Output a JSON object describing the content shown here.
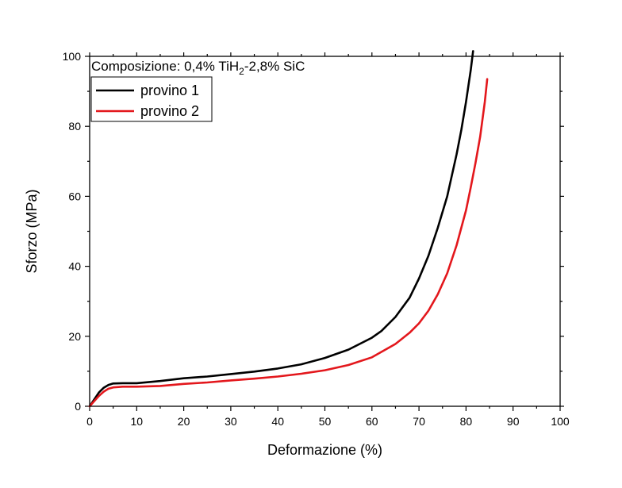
{
  "chart_data": {
    "type": "line",
    "title": "",
    "annotation": {
      "prefix": "Composizione: 0,4% TiH",
      "subscript": "2",
      "suffix": "-2,8% SiC"
    },
    "xlabel": "Deformazione (%)",
    "ylabel": "Sforzo (MPa)",
    "xlim": [
      0,
      100
    ],
    "ylim": [
      0,
      100
    ],
    "xticks": [
      0,
      10,
      20,
      30,
      40,
      50,
      60,
      70,
      80,
      90,
      100
    ],
    "yticks": [
      0,
      20,
      40,
      60,
      80,
      100
    ],
    "grid": false,
    "legend_position": "top-left",
    "series": [
      {
        "name": "provino 1",
        "color": "#000000",
        "x": [
          0,
          1,
          2,
          3,
          4,
          5,
          7,
          10,
          15,
          20,
          25,
          30,
          35,
          40,
          45,
          50,
          55,
          60,
          62,
          65,
          68,
          70,
          72,
          74,
          76,
          78,
          79,
          80,
          81,
          81.5
        ],
        "y": [
          0,
          2,
          4,
          5.3,
          6.1,
          6.5,
          6.6,
          6.6,
          7.2,
          8,
          8.5,
          9.2,
          9.9,
          10.8,
          12,
          13.8,
          16.2,
          19.6,
          21.5,
          25.5,
          31,
          36.5,
          43,
          51,
          60,
          72,
          79,
          87,
          96,
          101.5
        ]
      },
      {
        "name": "provino 2",
        "color": "#e3171c",
        "x": [
          0,
          1,
          2,
          3,
          4,
          5,
          7,
          10,
          15,
          20,
          25,
          30,
          35,
          40,
          45,
          50,
          55,
          60,
          65,
          68,
          70,
          72,
          74,
          76,
          78,
          80,
          81,
          82,
          83,
          84,
          84.5
        ],
        "y": [
          0,
          1.5,
          3,
          4.2,
          5,
          5.4,
          5.6,
          5.6,
          5.8,
          6.4,
          6.8,
          7.4,
          7.9,
          8.5,
          9.3,
          10.3,
          11.8,
          14,
          17.8,
          21,
          23.7,
          27.3,
          32,
          38,
          46,
          56,
          62.5,
          69.5,
          77,
          87,
          93.5
        ]
      }
    ]
  }
}
